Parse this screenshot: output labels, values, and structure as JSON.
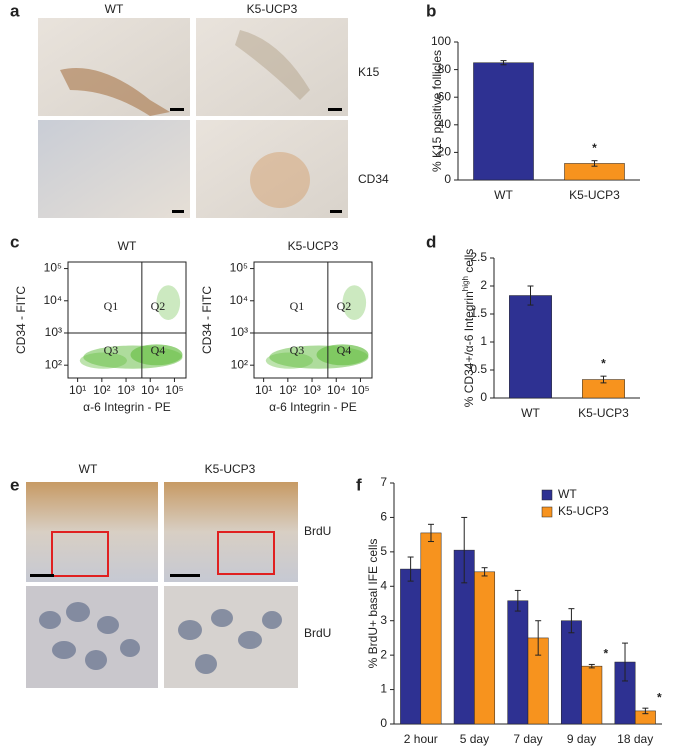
{
  "panel_letters": [
    "a",
    "b",
    "c",
    "d",
    "e",
    "f"
  ],
  "figure_a": {
    "columns": [
      "WT",
      "K5-UCP3"
    ],
    "rows": [
      "K15",
      "CD34"
    ]
  },
  "figure_e": {
    "columns": [
      "WT",
      "K5-UCP3"
    ],
    "rows": [
      "BrdU",
      "BrdU"
    ]
  },
  "chart_data": [
    {
      "type": "bar",
      "y_label": "% K15 positive follicles",
      "categories": [
        "WT",
        "K5-UCP3"
      ],
      "values": [
        85,
        12
      ],
      "errors": [
        1.5,
        2
      ],
      "colors": [
        "#2e3192",
        "#f7931e"
      ],
      "ylim": [
        0,
        100
      ],
      "yticks": [
        0,
        20,
        40,
        60,
        80,
        100
      ],
      "annotations": [
        {
          "text": "*",
          "category": "K5-UCP3"
        }
      ]
    },
    {
      "type": "scatter",
      "title": "WT",
      "x_label": "α-6 Integrin - PE",
      "y_label": "CD34 - FITC",
      "log_x": true,
      "log_y": true,
      "color": "#6cc04a",
      "xlim": [
        4,
        300000
      ],
      "ylim": [
        40,
        160000
      ],
      "xticks": [
        {
          "value": 10,
          "label": "10¹"
        },
        {
          "value": 100,
          "label": "10²"
        },
        {
          "value": 1000,
          "label": "10³"
        },
        {
          "value": 10000,
          "label": "10⁴"
        },
        {
          "value": 100000,
          "label": "10⁵"
        }
      ],
      "yticks": [
        {
          "value": 100,
          "label": "10²"
        },
        {
          "value": 1000,
          "label": "10³"
        },
        {
          "value": 10000,
          "label": "10⁴"
        },
        {
          "value": 100000,
          "label": "10⁵"
        }
      ],
      "quadrant_x": 4500,
      "quadrant_y": 1000,
      "quadrant_labels": [
        "Q1",
        "Q2",
        "Q3",
        "Q4"
      ]
    },
    {
      "type": "scatter",
      "title": "K5-UCP3",
      "x_label": "α-6 Integrin - PE",
      "y_label": "CD34 - FITC",
      "log_x": true,
      "log_y": true,
      "color": "#6cc04a",
      "xlim": [
        4,
        300000
      ],
      "ylim": [
        40,
        160000
      ],
      "xticks": [
        {
          "value": 10,
          "label": "10¹"
        },
        {
          "value": 100,
          "label": "10²"
        },
        {
          "value": 1000,
          "label": "10³"
        },
        {
          "value": 10000,
          "label": "10⁴"
        },
        {
          "value": 100000,
          "label": "10⁵"
        }
      ],
      "yticks": [
        {
          "value": 100,
          "label": "10²"
        },
        {
          "value": 1000,
          "label": "10³"
        },
        {
          "value": 10000,
          "label": "10⁴"
        },
        {
          "value": 100000,
          "label": "10⁵"
        }
      ],
      "quadrant_x": 4500,
      "quadrant_y": 1000,
      "quadrant_labels": [
        "Q1",
        "Q2",
        "Q3",
        "Q4"
      ]
    },
    {
      "type": "bar",
      "y_label_parts": [
        "% CD34+/α-6 Integrin",
        "high",
        " cells"
      ],
      "categories": [
        "WT",
        "K5-UCP3"
      ],
      "values": [
        1.83,
        0.33
      ],
      "errors": [
        0.17,
        0.06
      ],
      "colors": [
        "#2e3192",
        "#f7931e"
      ],
      "ylim": [
        0,
        2.5
      ],
      "yticks": [
        0,
        0.5,
        1,
        1.5,
        2,
        2.5
      ],
      "annotations": [
        {
          "text": "*",
          "category": "K5-UCP3"
        }
      ]
    },
    {
      "type": "bar",
      "y_label": "% BrdU+ basal IFE cells",
      "categories": [
        "2 hour",
        "5 day",
        "7 day",
        "9 day",
        "18 day"
      ],
      "series": [
        {
          "name": "WT",
          "color": "#2e3192",
          "values": [
            4.5,
            5.05,
            3.58,
            3.0,
            1.8
          ],
          "errors": [
            0.35,
            0.95,
            0.3,
            0.35,
            0.55
          ]
        },
        {
          "name": "K5-UCP3",
          "color": "#f7931e",
          "values": [
            5.55,
            4.42,
            2.5,
            1.68,
            0.38
          ],
          "errors": [
            0.25,
            0.12,
            0.5,
            0.05,
            0.08
          ]
        }
      ],
      "ylim": [
        0,
        7
      ],
      "yticks": [
        0,
        1,
        2,
        3,
        4,
        5,
        6,
        7
      ],
      "legend": "upper right",
      "annotations": [
        {
          "text": "*",
          "series": "K5-UCP3",
          "category": "9 day"
        },
        {
          "text": "*",
          "series": "K5-UCP3",
          "category": "18 day"
        }
      ]
    }
  ]
}
